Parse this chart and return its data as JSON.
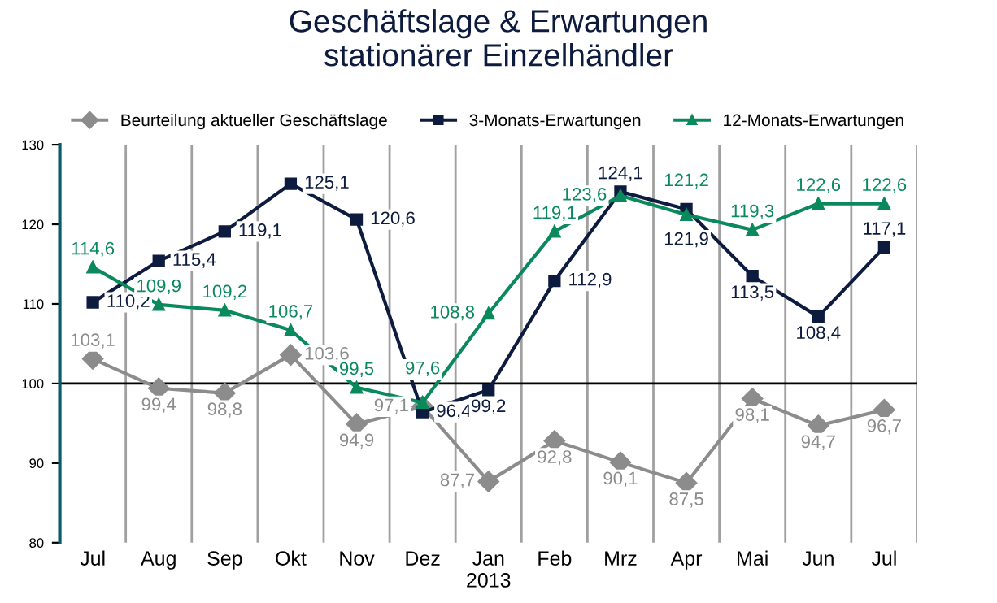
{
  "chart_data": {
    "type": "line",
    "title": "Geschäftslage & Erwartungen\nstationärer Einzelhändler",
    "categories": [
      "Jul",
      "Aug",
      "Sep",
      "Okt",
      "Nov",
      "Dez",
      "Jan\n2013",
      "Feb",
      "Mrz",
      "Apr",
      "Mai",
      "Jun",
      "Jul"
    ],
    "series": [
      {
        "name": "Beurteilung aktueller Geschäftslage",
        "color": "#8c8c8c",
        "marker": "diamond",
        "values": [
          103.1,
          99.4,
          98.8,
          103.6,
          94.9,
          97.1,
          87.7,
          92.8,
          90.1,
          87.5,
          98.1,
          94.7,
          96.7
        ],
        "value_labels": [
          "103,1",
          "99,4",
          "98,8",
          "103,6",
          "94,9",
          "97,1",
          "87,7",
          "92,8",
          "90,1",
          "87,5",
          "98,1",
          "94,7",
          "96,7"
        ]
      },
      {
        "name": "3-Monats-Erwartungen",
        "color": "#0d1b3e",
        "marker": "square",
        "values": [
          110.2,
          115.4,
          119.1,
          125.1,
          120.6,
          96.4,
          99.2,
          112.9,
          124.1,
          121.9,
          113.5,
          108.4,
          117.1
        ],
        "value_labels": [
          "110,2",
          "115,4",
          "119,1",
          "125,1",
          "120,6",
          "96,4",
          "99,2",
          "112,9",
          "124,1",
          "121,9",
          "113,5",
          "108,4",
          "117,1"
        ]
      },
      {
        "name": "12-Monats-Erwartungen",
        "color": "#0a8a5c",
        "marker": "triangle",
        "values": [
          114.6,
          109.9,
          109.2,
          106.7,
          99.5,
          97.6,
          108.8,
          119.1,
          123.6,
          121.2,
          119.3,
          122.6,
          122.6
        ],
        "value_labels": [
          "114,6",
          "109,9",
          "109,2",
          "106,7",
          "99,5",
          "97,6",
          "108,8",
          "119,1",
          "123,6",
          "121,2",
          "119,3",
          "122,6",
          "122,6"
        ]
      }
    ],
    "ylim": [
      80,
      130
    ],
    "yticks": [
      80,
      90,
      100,
      110,
      120,
      130
    ],
    "ref_lines": [
      {
        "axis": "y",
        "value": 100,
        "color": "#000000"
      }
    ],
    "grid": "x",
    "legend": "top",
    "line_style": "solid"
  }
}
